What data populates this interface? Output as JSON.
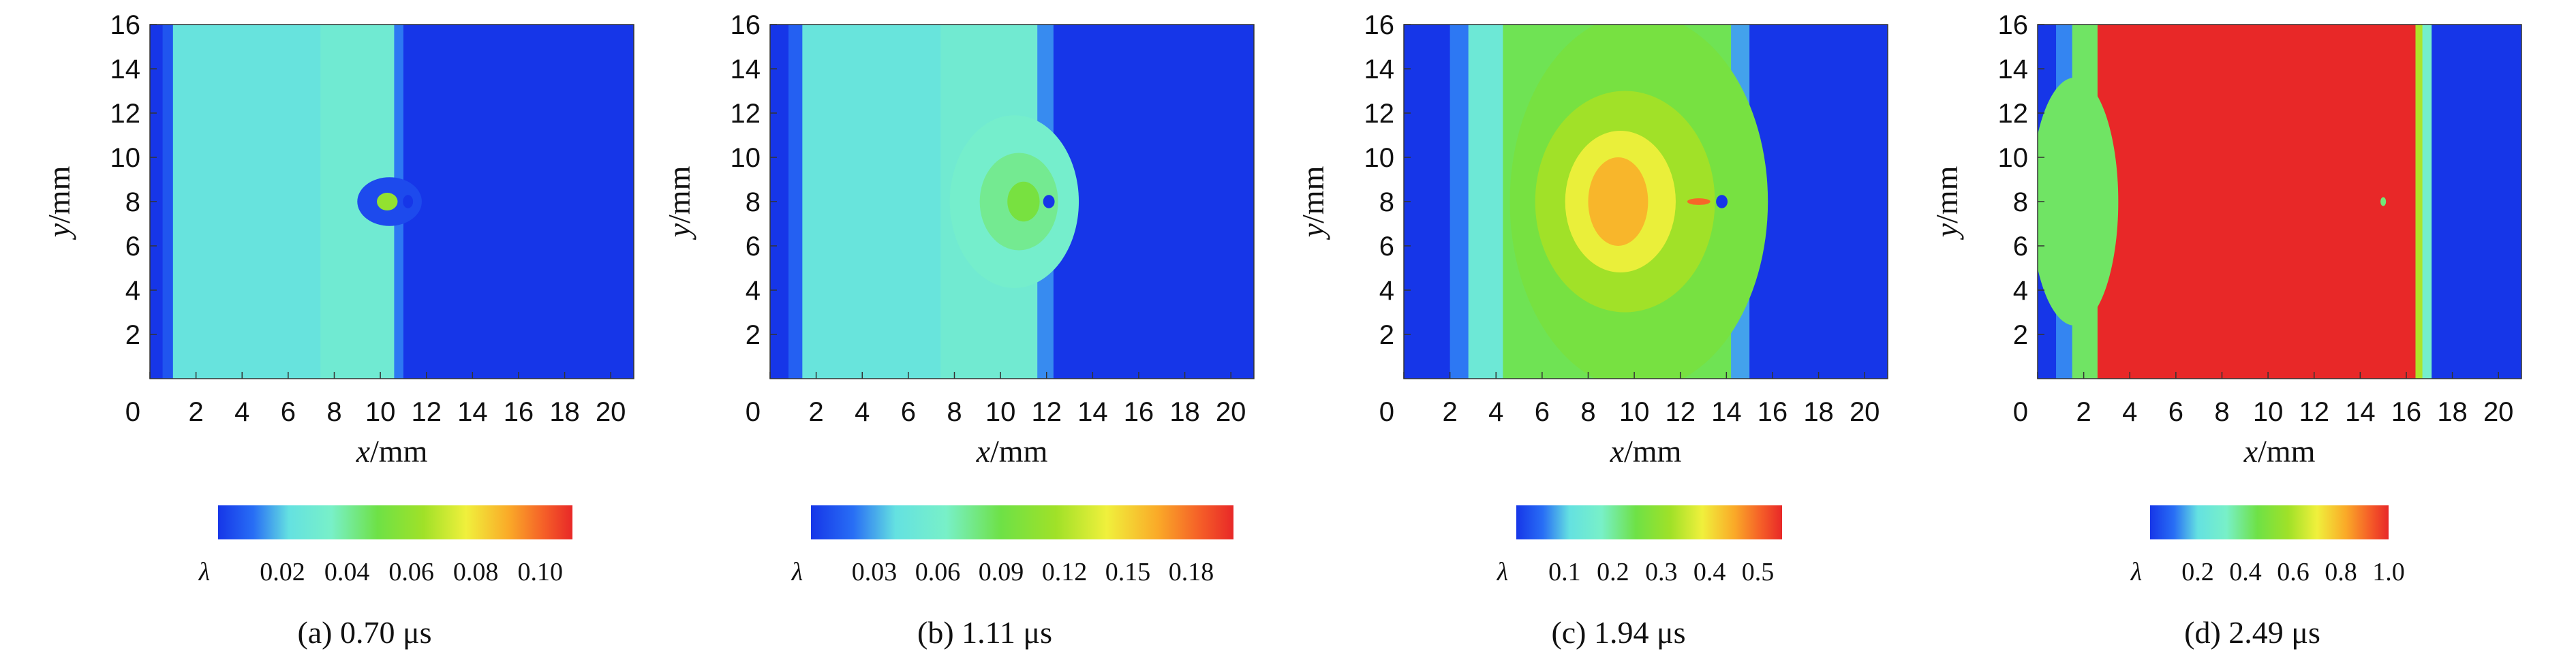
{
  "chart_data": [
    {
      "type": "heatmap",
      "caption": "(a) 0.70 μs",
      "xlabel_var": "x",
      "xlabel_unit": "/mm",
      "ylabel_var": "y",
      "ylabel_unit": "/mm",
      "x_ticks": [
        "0",
        "2",
        "4",
        "6",
        "8",
        "10",
        "12",
        "14",
        "16",
        "18",
        "20"
      ],
      "y_ticks": [
        "2",
        "4",
        "6",
        "8",
        "10",
        "12",
        "14",
        "16"
      ],
      "xlim": [
        0,
        21
      ],
      "ylim": [
        0,
        16
      ],
      "colorbar": {
        "symbol": "λ",
        "ticks": [
          "0.02",
          "0.04",
          "0.06",
          "0.08",
          "0.10"
        ],
        "vmin": 0,
        "vmax": 0.11
      },
      "bands": [
        {
          "x0": 0,
          "x1": 0.55,
          "value": 0.0
        },
        {
          "x0": 0.55,
          "x1": 1.0,
          "value": 0.006
        },
        {
          "x0": 1.0,
          "x1": 7.4,
          "value": 0.024
        },
        {
          "x0": 7.4,
          "x1": 10.6,
          "value": 0.03
        },
        {
          "x0": 10.6,
          "x1": 11.0,
          "value": 0.012
        },
        {
          "x0": 11.0,
          "x1": 21,
          "value": 0.0
        }
      ],
      "features": [
        {
          "kind": "ellipse",
          "cx": 10.4,
          "cy": 8,
          "rx": 1.4,
          "ry": 1.1,
          "value": 0.004
        },
        {
          "kind": "ellipse",
          "cx": 10.3,
          "cy": 8,
          "rx": 0.45,
          "ry": 0.4,
          "value": 0.06
        },
        {
          "kind": "ellipse",
          "cx": 11.2,
          "cy": 8,
          "rx": 0.22,
          "ry": 0.3,
          "value": 0.0
        }
      ]
    },
    {
      "type": "heatmap",
      "caption": "(b) 1.11 μs",
      "xlabel_var": "x",
      "xlabel_unit": "/mm",
      "ylabel_var": "y",
      "ylabel_unit": "/mm",
      "x_ticks": [
        "0",
        "2",
        "4",
        "6",
        "8",
        "10",
        "12",
        "14",
        "16",
        "18",
        "20"
      ],
      "y_ticks": [
        "2",
        "4",
        "6",
        "8",
        "10",
        "12",
        "14",
        "16"
      ],
      "xlim": [
        0,
        21
      ],
      "ylim": [
        0,
        16
      ],
      "colorbar": {
        "symbol": "λ",
        "ticks": [
          "0.03",
          "0.06",
          "0.09",
          "0.12",
          "0.15",
          "0.18"
        ],
        "vmin": 0,
        "vmax": 0.2
      },
      "bands": [
        {
          "x0": 0,
          "x1": 0.8,
          "value": 0.0
        },
        {
          "x0": 0.8,
          "x1": 1.4,
          "value": 0.015
        },
        {
          "x0": 1.4,
          "x1": 7.4,
          "value": 0.045
        },
        {
          "x0": 7.4,
          "x1": 11.6,
          "value": 0.055
        },
        {
          "x0": 11.6,
          "x1": 12.3,
          "value": 0.025
        },
        {
          "x0": 12.3,
          "x1": 21,
          "value": 0.0
        }
      ],
      "features": [
        {
          "kind": "ellipse",
          "cx": 10.6,
          "cy": 8,
          "rx": 2.8,
          "ry": 3.9,
          "value": 0.06
        },
        {
          "kind": "ellipse",
          "cx": 10.8,
          "cy": 8,
          "rx": 1.7,
          "ry": 2.2,
          "value": 0.075
        },
        {
          "kind": "ellipse",
          "cx": 11.0,
          "cy": 8,
          "rx": 0.7,
          "ry": 0.9,
          "value": 0.095
        },
        {
          "kind": "ellipse",
          "cx": 12.1,
          "cy": 8,
          "rx": 0.25,
          "ry": 0.3,
          "value": 0.0
        }
      ]
    },
    {
      "type": "heatmap",
      "caption": "(c) 1.94 μs",
      "xlabel_var": "x",
      "xlabel_unit": "/mm",
      "ylabel_var": "y",
      "ylabel_unit": "/mm",
      "x_ticks": [
        "0",
        "2",
        "4",
        "6",
        "8",
        "10",
        "12",
        "14",
        "16",
        "18",
        "20"
      ],
      "y_ticks": [
        "2",
        "4",
        "6",
        "8",
        "10",
        "12",
        "14",
        "16"
      ],
      "xlim": [
        0,
        21
      ],
      "ylim": [
        0,
        16
      ],
      "colorbar": {
        "symbol": "λ",
        "ticks": [
          "0.1",
          "0.2",
          "0.3",
          "0.4",
          "0.5"
        ],
        "vmin": 0,
        "vmax": 0.55
      },
      "bands": [
        {
          "x0": 0,
          "x1": 2.0,
          "value": 0.0
        },
        {
          "x0": 2.0,
          "x1": 2.8,
          "value": 0.06
        },
        {
          "x0": 2.8,
          "x1": 4.3,
          "value": 0.14
        },
        {
          "x0": 4.3,
          "x1": 14.2,
          "value": 0.24
        },
        {
          "x0": 14.2,
          "x1": 15.0,
          "value": 0.08
        },
        {
          "x0": 15.0,
          "x1": 21,
          "value": 0.0
        }
      ],
      "features": [
        {
          "kind": "ellipse",
          "cx": 10.2,
          "cy": 8,
          "rx": 5.6,
          "ry": 8.5,
          "value": 0.26
        },
        {
          "kind": "ellipse",
          "cx": 9.6,
          "cy": 8,
          "rx": 3.9,
          "ry": 5.0,
          "value": 0.32
        },
        {
          "kind": "ellipse",
          "cx": 9.4,
          "cy": 8,
          "rx": 2.4,
          "ry": 3.2,
          "value": 0.38
        },
        {
          "kind": "ellipse",
          "cx": 9.3,
          "cy": 8,
          "rx": 1.3,
          "ry": 2.0,
          "value": 0.44
        },
        {
          "kind": "ellipse",
          "cx": 12.8,
          "cy": 8,
          "rx": 0.5,
          "ry": 0.15,
          "value": 0.5
        },
        {
          "kind": "ellipse",
          "cx": 13.8,
          "cy": 8,
          "rx": 0.25,
          "ry": 0.3,
          "value": 0.0
        }
      ]
    },
    {
      "type": "heatmap",
      "caption": "(d) 2.49 μs",
      "xlabel_var": "x",
      "xlabel_unit": "/mm",
      "ylabel_var": "y",
      "ylabel_unit": "/mm",
      "x_ticks": [
        "0",
        "2",
        "4",
        "6",
        "8",
        "10",
        "12",
        "14",
        "16",
        "18",
        "20"
      ],
      "y_ticks": [
        "2",
        "4",
        "6",
        "8",
        "10",
        "12",
        "14",
        "16"
      ],
      "xlim": [
        0,
        21
      ],
      "ylim": [
        0,
        16
      ],
      "colorbar": {
        "symbol": "λ",
        "ticks": [
          "0.2",
          "0.4",
          "0.6",
          "0.8",
          "1.0"
        ],
        "vmin": 0,
        "vmax": 1.0
      },
      "bands": [
        {
          "x0": 0,
          "x1": 0.8,
          "value": 0.0
        },
        {
          "x0": 0.8,
          "x1": 1.5,
          "value": 0.12
        },
        {
          "x0": 1.5,
          "x1": 2.6,
          "value": 0.42
        },
        {
          "x0": 2.6,
          "x1": 16.4,
          "value": 1.0
        },
        {
          "x0": 16.4,
          "x1": 16.7,
          "value": 0.6
        },
        {
          "x0": 16.7,
          "x1": 17.1,
          "value": 0.3
        },
        {
          "x0": 17.1,
          "x1": 21,
          "value": 0.0
        }
      ],
      "features": [
        {
          "kind": "ellipse",
          "cx": 1.6,
          "cy": 8,
          "rx": 1.9,
          "ry": 5.6,
          "value": 0.42
        },
        {
          "kind": "ellipse",
          "cx": 15.0,
          "cy": 8,
          "rx": 0.12,
          "ry": 0.2,
          "value": 0.4
        }
      ]
    }
  ]
}
